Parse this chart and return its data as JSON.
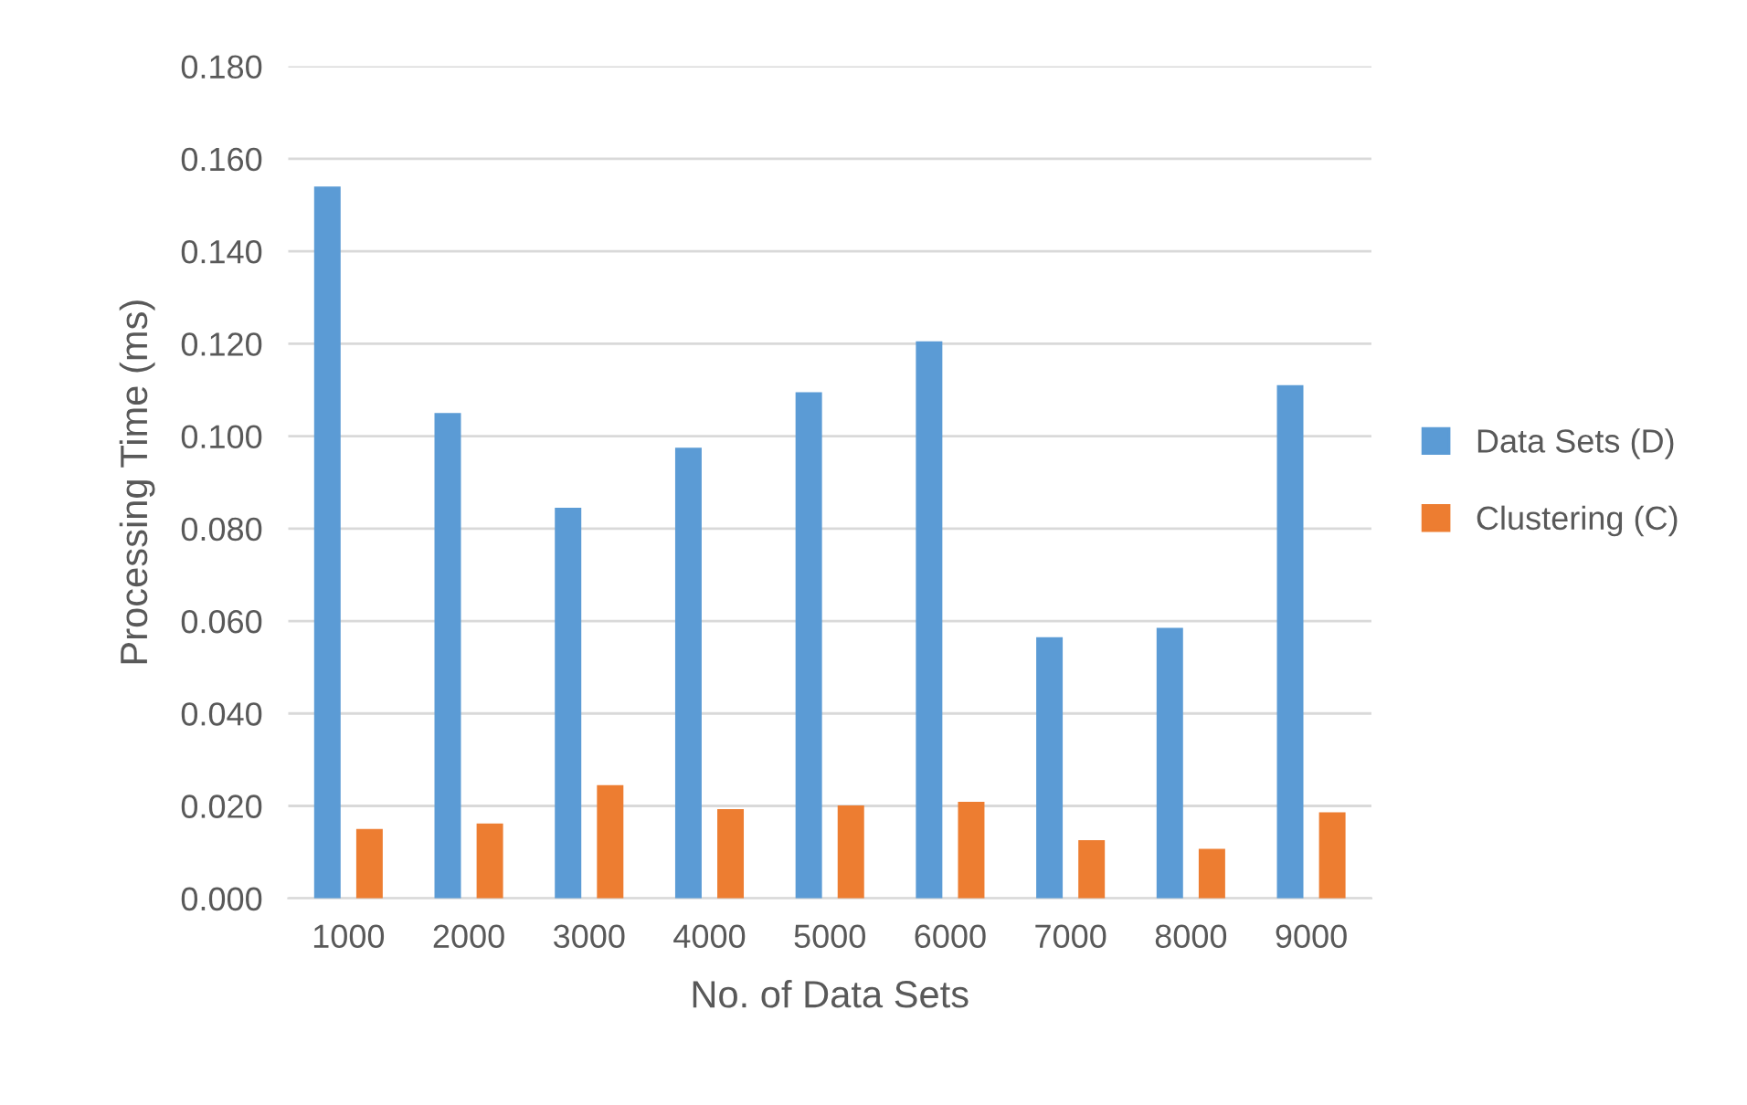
{
  "chart_data": {
    "type": "bar",
    "xlabel": "No. of Data Sets",
    "ylabel": "Processing Time (ms)",
    "categories": [
      "1000",
      "2000",
      "3000",
      "4000",
      "5000",
      "6000",
      "7000",
      "8000",
      "9000"
    ],
    "series": [
      {
        "name": "Data Sets (D)",
        "color": "#5b9bd5",
        "values": [
          0.154,
          0.105,
          0.0845,
          0.0975,
          0.1095,
          0.1205,
          0.0565,
          0.0585,
          0.111
        ]
      },
      {
        "name": "Clustering (C)",
        "color": "#ed7d31",
        "values": [
          0.015,
          0.0162,
          0.0245,
          0.0193,
          0.0201,
          0.0209,
          0.0126,
          0.0107,
          0.0186
        ]
      }
    ],
    "ylim": [
      0,
      0.18
    ],
    "yticks": [
      {
        "value": 0,
        "label": "0.000"
      },
      {
        "value": 0.02,
        "label": "0.020"
      },
      {
        "value": 0.04,
        "label": "0.040"
      },
      {
        "value": 0.06,
        "label": "0.060"
      },
      {
        "value": 0.08,
        "label": "0.080"
      },
      {
        "value": 0.1,
        "label": "0.100"
      },
      {
        "value": 0.12,
        "label": "0.120"
      },
      {
        "value": 0.14,
        "label": "0.140"
      },
      {
        "value": 0.16,
        "label": "0.160"
      },
      {
        "value": 0.18,
        "label": "0.180"
      }
    ],
    "grid": "y",
    "legend": "right"
  }
}
